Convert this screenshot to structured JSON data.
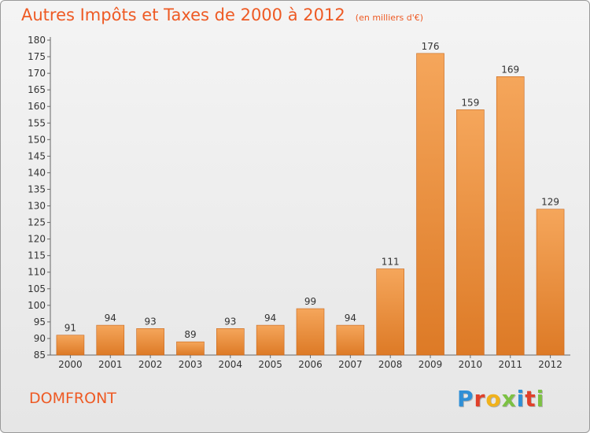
{
  "header": {
    "title": "Autres Impôts et Taxes de 2000 à 2012",
    "subtitle": "(en milliers d'€)"
  },
  "footer": {
    "commune": "DOMFRONT",
    "brand": "Proxiti"
  },
  "colors": {
    "accent": "#ee5a24",
    "bar_light": "#f5a65b",
    "bar_dark": "#dd7a26",
    "logo_letters": [
      "#2f8fd6",
      "#e0402a",
      "#f0b21c",
      "#7cc143",
      "#2f8fd6",
      "#e0402a",
      "#7cc143"
    ]
  },
  "chart_data": {
    "type": "bar",
    "categories": [
      "2000",
      "2001",
      "2002",
      "2003",
      "2004",
      "2005",
      "2006",
      "2007",
      "2008",
      "2009",
      "2010",
      "2011",
      "2012"
    ],
    "values": [
      91,
      94,
      93,
      89,
      93,
      94,
      99,
      94,
      111,
      176,
      159,
      169,
      129
    ],
    "title": "Autres Impôts et Taxes de 2000 à 2012",
    "subtitle": "(en milliers d'€)",
    "xlabel": "",
    "ylabel": "",
    "ylim": [
      85,
      180
    ],
    "yticks": [
      85,
      90,
      95,
      100,
      105,
      110,
      115,
      120,
      125,
      130,
      135,
      140,
      145,
      150,
      155,
      160,
      165,
      170,
      175,
      180
    ],
    "grid": false,
    "legend": "none"
  }
}
